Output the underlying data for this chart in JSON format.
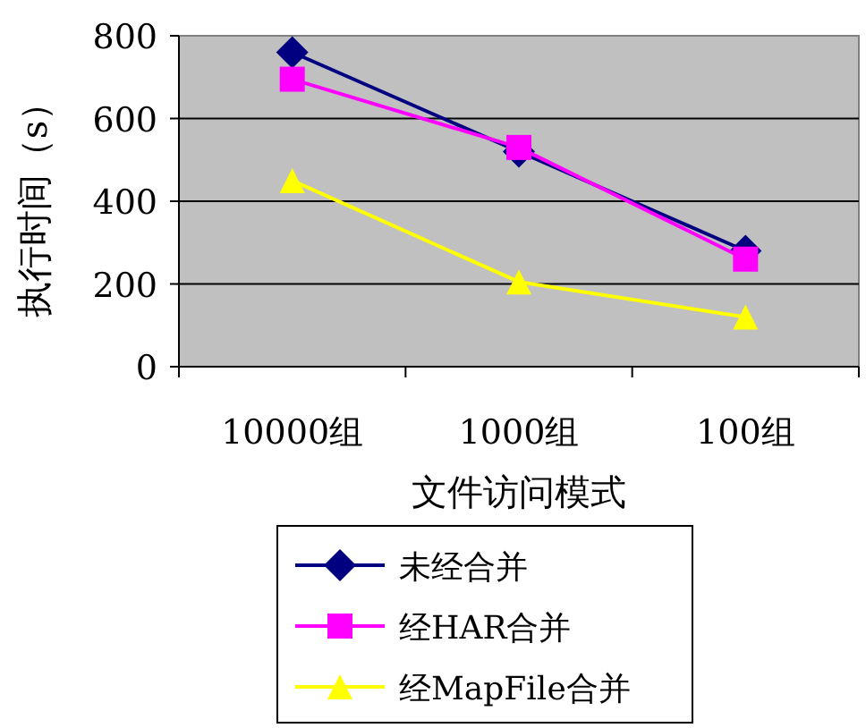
{
  "chart_data": {
    "type": "line",
    "xlabel": "文件访问模式",
    "ylabel": "执行时间（s）",
    "categories": [
      "10000组",
      "1000组",
      "100组"
    ],
    "series": [
      {
        "name": "未经合并",
        "color": "#000080",
        "marker": "diamond",
        "values": [
          760,
          520,
          280
        ]
      },
      {
        "name": "经HAR合并",
        "color": "#ff00ff",
        "marker": "square",
        "values": [
          695,
          530,
          260
        ]
      },
      {
        "name": "经MapFile合并",
        "color": "#ffff00",
        "marker": "triangle",
        "values": [
          450,
          205,
          120
        ]
      }
    ],
    "ylim": [
      0,
      800
    ],
    "yticks": [
      0,
      200,
      400,
      600,
      800
    ],
    "grid": "y",
    "legend": "bottom"
  }
}
